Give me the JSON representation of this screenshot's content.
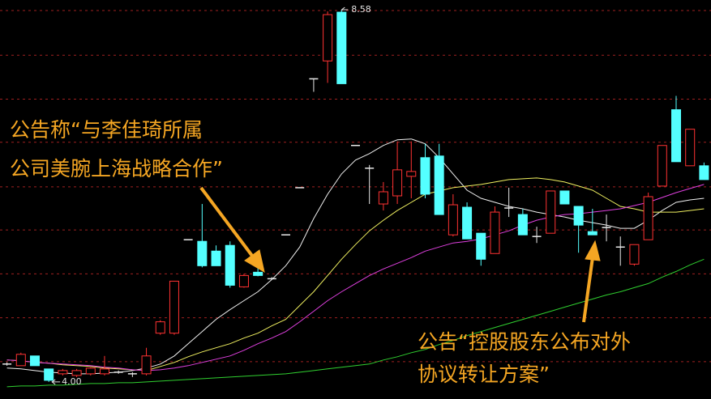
{
  "chart_data": {
    "type": "candlestick",
    "ylim": [
      3.79,
      8.7
    ],
    "ygrid": [
      8.57,
      8.02,
      7.48,
      6.95,
      6.4,
      5.87,
      5.33,
      4.79,
      4.25
    ],
    "grid_color": "#a02020",
    "up_color": "#ff3232",
    "down_color": "#54ffff",
    "doji_color": "#e8e8e8",
    "open": [
      4.22,
      4.2,
      4.32,
      4.16,
      4.1,
      4.08,
      4.1,
      4.1,
      4.12,
      4.1,
      4.1,
      4.6,
      4.6,
      5.75,
      5.73,
      5.61,
      5.68,
      5.17,
      5.35,
      5.27,
      5.81,
      6.39,
      7.73,
      7.95,
      8.55,
      6.91,
      6.63,
      6.19,
      6.29,
      6.53,
      6.76,
      6.78,
      5.81,
      6.15,
      5.83,
      5.58,
      6.14,
      6.06,
      5.79,
      5.83,
      6.35,
      6.16,
      5.85,
      5.9,
      5.66,
      5.45,
      5.75,
      6.41,
      7.35,
      6.66,
      6.66
    ],
    "high": [
      4.24,
      4.36,
      4.32,
      4.16,
      4.16,
      4.16,
      4.18,
      4.32,
      4.14,
      4.12,
      4.42,
      4.76,
      5.24,
      5.75,
      6.19,
      5.68,
      5.73,
      5.33,
      5.45,
      5.29,
      5.81,
      6.39,
      7.73,
      8.56,
      8.58,
      6.91,
      6.67,
      6.46,
      6.96,
      6.96,
      6.93,
      6.93,
      6.31,
      6.21,
      5.83,
      6.16,
      6.39,
      6.13,
      5.91,
      6.35,
      6.35,
      6.16,
      6.13,
      6.06,
      5.79,
      5.69,
      6.33,
      6.91,
      7.52,
      7.11,
      6.7
    ],
    "low": [
      4.2,
      4.2,
      4.2,
      4.0,
      4.08,
      4.06,
      4.08,
      4.08,
      4.1,
      4.06,
      4.08,
      4.58,
      4.58,
      5.75,
      5.41,
      5.43,
      5.16,
      5.16,
      5.3,
      5.26,
      5.81,
      6.39,
      7.57,
      7.68,
      7.67,
      6.91,
      6.19,
      6.11,
      6.19,
      6.26,
      6.26,
      6.06,
      5.79,
      5.76,
      5.43,
      5.58,
      6.03,
      5.81,
      5.71,
      5.83,
      6.19,
      5.59,
      5.81,
      5.73,
      5.43,
      5.43,
      5.75,
      6.41,
      6.71,
      6.66,
      6.49
    ],
    "close": [
      4.22,
      4.34,
      4.2,
      4.02,
      4.14,
      4.14,
      4.17,
      4.16,
      4.12,
      4.1,
      4.32,
      4.74,
      5.24,
      5.75,
      5.43,
      5.43,
      5.19,
      5.31,
      5.31,
      5.27,
      5.81,
      6.39,
      7.73,
      8.52,
      7.67,
      6.91,
      6.63,
      6.34,
      6.61,
      6.59,
      6.31,
      6.06,
      6.18,
      5.76,
      5.51,
      6.09,
      6.14,
      5.81,
      5.79,
      6.35,
      6.19,
      5.93,
      5.81,
      5.9,
      5.66,
      5.69,
      6.28,
      6.91,
      6.71,
      7.11,
      6.49
    ],
    "lines": [
      {
        "color": "#f0f0f0",
        "values": [
          4.17,
          4.16,
          4.14,
          4.12,
          4.11,
          4.1,
          4.1,
          4.11,
          4.12,
          4.14,
          4.17,
          4.22,
          4.32,
          4.47,
          4.62,
          4.77,
          4.89,
          5.0,
          5.11,
          5.26,
          5.43,
          5.66,
          6.01,
          6.31,
          6.56,
          6.73,
          6.81,
          6.91,
          6.98,
          6.99,
          6.93,
          6.76,
          6.56,
          6.36,
          6.26,
          6.21,
          6.16,
          6.13,
          6.09,
          6.06,
          6.03,
          5.99,
          5.96,
          5.93,
          5.89,
          5.89,
          5.99,
          6.11,
          6.21,
          6.24,
          6.26
        ]
      },
      {
        "color": "#f0f060",
        "values": [
          4.27,
          4.26,
          4.24,
          4.23,
          4.21,
          4.2,
          4.19,
          4.17,
          4.16,
          4.15,
          4.14,
          4.19,
          4.24,
          4.31,
          4.37,
          4.42,
          4.47,
          4.54,
          4.6,
          4.69,
          4.77,
          4.94,
          5.11,
          5.31,
          5.51,
          5.69,
          5.86,
          5.99,
          6.11,
          6.21,
          6.31,
          6.35,
          6.39,
          6.41,
          6.43,
          6.46,
          6.49,
          6.5,
          6.51,
          6.49,
          6.46,
          6.41,
          6.36,
          6.26,
          6.16,
          6.13,
          6.09,
          6.09,
          6.09,
          6.11,
          6.13
        ]
      },
      {
        "color": "#e040e0",
        "values": [
          4.27,
          4.26,
          4.24,
          4.23,
          4.22,
          4.21,
          4.2,
          4.18,
          4.17,
          4.15,
          4.14,
          4.15,
          4.17,
          4.2,
          4.24,
          4.28,
          4.32,
          4.39,
          4.47,
          4.54,
          4.62,
          4.74,
          4.87,
          5.0,
          5.11,
          5.21,
          5.31,
          5.39,
          5.46,
          5.53,
          5.61,
          5.66,
          5.71,
          5.73,
          5.76,
          5.81,
          5.86,
          5.93,
          5.99,
          6.03,
          6.06,
          6.07,
          6.09,
          6.11,
          6.13,
          6.17,
          6.21,
          6.27,
          6.33,
          6.38,
          6.43
        ]
      },
      {
        "color": "#30d030",
        "values": [
          3.94,
          3.95,
          3.95,
          3.96,
          3.96,
          3.97,
          3.98,
          3.98,
          3.99,
          3.99,
          4.0,
          4.01,
          4.02,
          4.03,
          4.04,
          4.05,
          4.06,
          4.07,
          4.08,
          4.09,
          4.1,
          4.12,
          4.14,
          4.16,
          4.18,
          4.2,
          4.22,
          4.27,
          4.31,
          4.36,
          4.4,
          4.46,
          4.51,
          4.57,
          4.62,
          4.67,
          4.72,
          4.77,
          4.82,
          4.87,
          4.92,
          4.97,
          5.02,
          5.07,
          5.11,
          5.16,
          5.21,
          5.29,
          5.36,
          5.44,
          5.51
        ]
      }
    ],
    "high_label": 8.58,
    "low_label": {
      "value": 4,
      "label": "4.00"
    },
    "annotations": [
      {
        "lines": [
          "公告称“与李佳琦所属",
          "公司美腕上海战略合作”"
        ]
      },
      {
        "lines": [
          "公告“控股股东公布对外",
          "协议转让方案”"
        ]
      }
    ]
  }
}
